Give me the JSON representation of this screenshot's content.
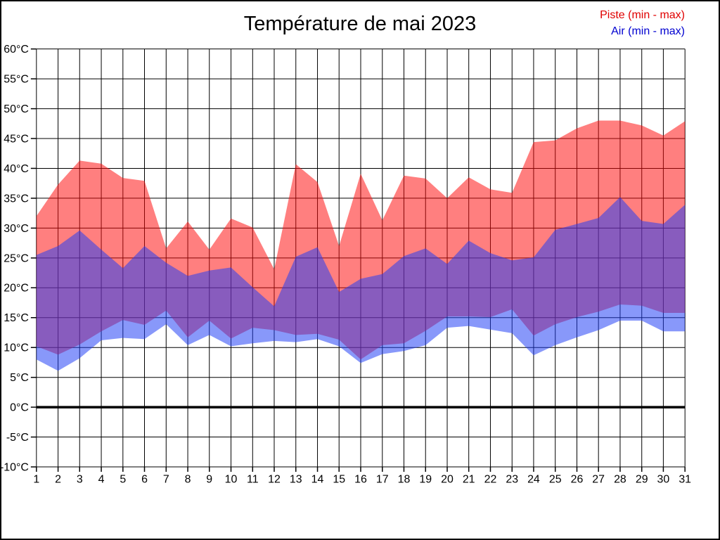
{
  "title": "Température de mai 2023",
  "legend": [
    {
      "label": "Piste (min - max)",
      "color": "#e00000"
    },
    {
      "label": "Air (min - max)",
      "color": "#0000d0"
    }
  ],
  "chart_data": {
    "type": "area",
    "title": "Température de mai 2023",
    "xlabel": "",
    "ylabel": "°C",
    "x": [
      1,
      2,
      3,
      4,
      5,
      6,
      7,
      8,
      9,
      10,
      11,
      12,
      13,
      14,
      15,
      16,
      17,
      18,
      19,
      20,
      21,
      22,
      23,
      24,
      25,
      26,
      27,
      28,
      29,
      30,
      31
    ],
    "series": [
      {
        "name": "Piste max",
        "values": [
          32.0,
          37.3,
          41.3,
          40.8,
          38.4,
          37.9,
          26.6,
          31.1,
          26.4,
          31.6,
          30.1,
          23.1,
          40.7,
          37.7,
          27.0,
          39.1,
          31.3,
          38.8,
          38.3,
          35.0,
          38.5,
          36.5,
          35.9,
          44.4,
          44.7,
          46.7,
          48.0,
          48.0,
          47.2,
          45.5,
          47.9
        ]
      },
      {
        "name": "Piste min",
        "values": [
          10.2,
          8.8,
          10.5,
          12.7,
          14.6,
          13.8,
          16.2,
          11.7,
          14.5,
          11.5,
          13.3,
          12.9,
          12.1,
          12.3,
          11.3,
          8.0,
          10.4,
          10.7,
          12.8,
          15.2,
          15.2,
          15.1,
          16.4,
          12.0,
          13.9,
          15.1,
          16.0,
          17.2,
          17.0,
          15.8,
          15.8
        ]
      },
      {
        "name": "Air max",
        "values": [
          25.5,
          27.0,
          29.6,
          26.4,
          23.3,
          27.0,
          24.2,
          22.0,
          22.9,
          23.4,
          20.1,
          16.9,
          25.2,
          26.8,
          19.3,
          21.5,
          22.3,
          25.3,
          26.6,
          24.0,
          27.9,
          25.8,
          24.6,
          25.1,
          29.7,
          30.7,
          31.7,
          35.2,
          31.2,
          30.7,
          33.9
        ]
      },
      {
        "name": "Air min",
        "values": [
          8.0,
          6.1,
          8.2,
          11.2,
          11.6,
          11.4,
          13.9,
          10.4,
          12.1,
          10.2,
          10.7,
          11.1,
          10.9,
          11.4,
          10.2,
          7.4,
          8.9,
          9.4,
          10.4,
          13.3,
          13.6,
          13.0,
          12.4,
          8.7,
          10.4,
          11.7,
          12.9,
          14.5,
          14.5,
          12.7,
          12.7
        ]
      }
    ],
    "ylim": [
      -10,
      60
    ],
    "ytick_step": 5,
    "yticks": [
      {
        "value": 60,
        "label": "60°C"
      },
      {
        "value": 55,
        "label": "55°C"
      },
      {
        "value": 50,
        "label": "50°C"
      },
      {
        "value": 45,
        "label": "45°C"
      },
      {
        "value": 40,
        "label": "40°C"
      },
      {
        "value": 35,
        "label": "35°C"
      },
      {
        "value": 30,
        "label": "30°C"
      },
      {
        "value": 25,
        "label": "25°C"
      },
      {
        "value": 20,
        "label": "20°C"
      },
      {
        "value": 15,
        "label": "15°C"
      },
      {
        "value": 10,
        "label": "10°C"
      },
      {
        "value": 5,
        "label": "5°C"
      },
      {
        "value": 0,
        "label": "0°C"
      },
      {
        "value": -5,
        "label": "-5°C"
      },
      {
        "value": -10,
        "label": "-10°C"
      }
    ],
    "xticks": [
      "1",
      "2",
      "3",
      "4",
      "5",
      "6",
      "7",
      "8",
      "9",
      "10",
      "11",
      "12",
      "13",
      "14",
      "15",
      "16",
      "17",
      "18",
      "19",
      "20",
      "21",
      "22",
      "23",
      "24",
      "25",
      "26",
      "27",
      "28",
      "29",
      "30",
      "31"
    ],
    "grid": true,
    "zero_line_emphasized": true,
    "legend_position": "top-right",
    "colors": {
      "piste_fill": "rgba(255,10,10,0.52)",
      "air_fill": "rgba(30,60,245,0.53)",
      "overlap_observed": "#7B42C8",
      "grid": "#000000",
      "text": "#000000"
    }
  }
}
